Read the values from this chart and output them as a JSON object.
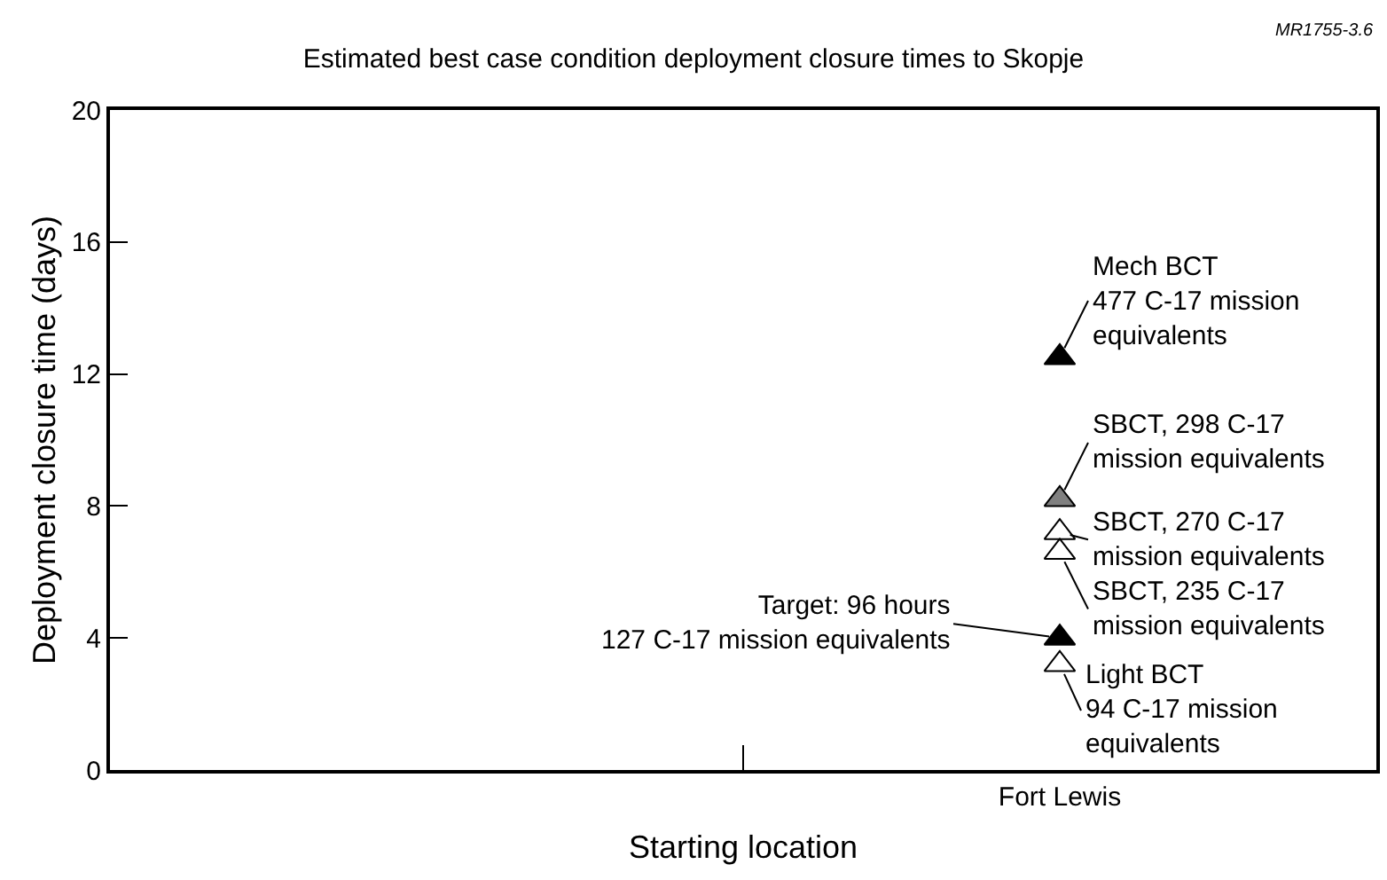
{
  "chart_data": {
    "type": "scatter",
    "title": "Estimated best case condition deployment closure times to Skopje",
    "xlabel": "Starting location",
    "ylabel": "Deployment closure time (days)",
    "categories": [
      null,
      "Fort Lewis"
    ],
    "series": [
      {
        "color": "#000000",
        "values": [
          null,
          12.5
        ]
      },
      {
        "color": "#808080",
        "values": [
          null,
          8.2
        ]
      },
      {
        "color": "#ffffff",
        "values": [
          null,
          7.2
        ]
      },
      {
        "color": "#ffffff",
        "values": [
          null,
          6.6
        ]
      },
      {
        "color": "#000000",
        "values": [
          null,
          4.0
        ]
      },
      {
        "color": "#ffffff",
        "values": [
          null,
          3.2
        ]
      }
    ],
    "marker": "triangle",
    "ylim": [
      0,
      20
    ],
    "yticks": [
      0,
      4,
      8,
      12,
      16,
      20
    ],
    "annotations": [
      {
        "text": "Mech BCT\n477 C-17 mission\nequivalents",
        "x": "Fort Lewis",
        "y": 12.5
      },
      {
        "text": "SBCT, 298 C-17\nmission equivalents",
        "x": "Fort Lewis",
        "y": 8.2
      },
      {
        "text": "SBCT, 270 C-17\nmission equivalents",
        "x": "Fort Lewis",
        "y": 7.2
      },
      {
        "text": "SBCT, 235 C-17\nmission equivalents",
        "x": "Fort Lewis",
        "y": 6.6
      },
      {
        "text": "Target: 96 hours\n127 C-17 mission equivalents",
        "x": "Fort Lewis",
        "y": 4.0
      },
      {
        "text": "Light BCT\n94 C-17 mission\nequivalents",
        "x": "Fort Lewis",
        "y": 3.2
      },
      "MR1755-3.6"
    ]
  }
}
